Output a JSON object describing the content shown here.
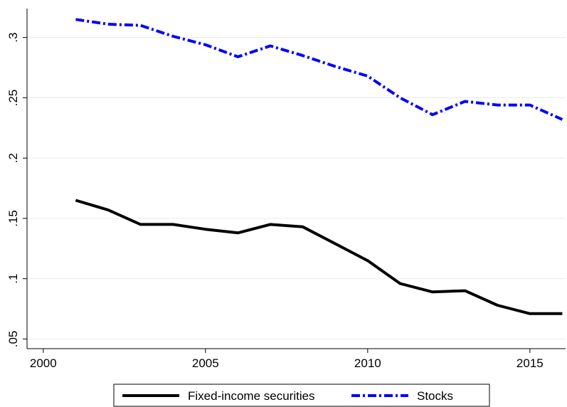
{
  "chart_data": {
    "type": "line",
    "x": [
      2001,
      2002,
      2003,
      2004,
      2005,
      2006,
      2007,
      2008,
      2009,
      2010,
      2011,
      2012,
      2013,
      2014,
      2015,
      2016
    ],
    "series": [
      {
        "name": "Fixed-income securities",
        "color": "#000000",
        "dash": "solid",
        "values": [
          0.165,
          0.157,
          0.145,
          0.145,
          0.141,
          0.138,
          0.145,
          0.143,
          0.129,
          0.115,
          0.096,
          0.089,
          0.09,
          0.078,
          0.071,
          0.071
        ]
      },
      {
        "name": "Stocks",
        "color": "#0000ff",
        "dash": "dash-dot",
        "values": [
          0.315,
          0.311,
          0.31,
          0.301,
          0.294,
          0.284,
          0.293,
          0.285,
          0.276,
          0.268,
          0.25,
          0.236,
          0.247,
          0.244,
          0.244,
          0.232
        ]
      }
    ],
    "xlim": [
      1999.5,
      2016.1
    ],
    "xticks": [
      2000,
      2005,
      2010,
      2015
    ],
    "ylim": [
      0.042,
      0.324
    ],
    "yticks": [
      {
        "value": 0.05,
        "label": ".05"
      },
      {
        "value": 0.1,
        "label": ".1"
      },
      {
        "value": 0.15,
        "label": ".15"
      },
      {
        "value": 0.2,
        "label": ".2"
      },
      {
        "value": 0.25,
        "label": ".25"
      },
      {
        "value": 0.3,
        "label": ".3"
      }
    ],
    "grid": true,
    "legend": "bottom"
  }
}
